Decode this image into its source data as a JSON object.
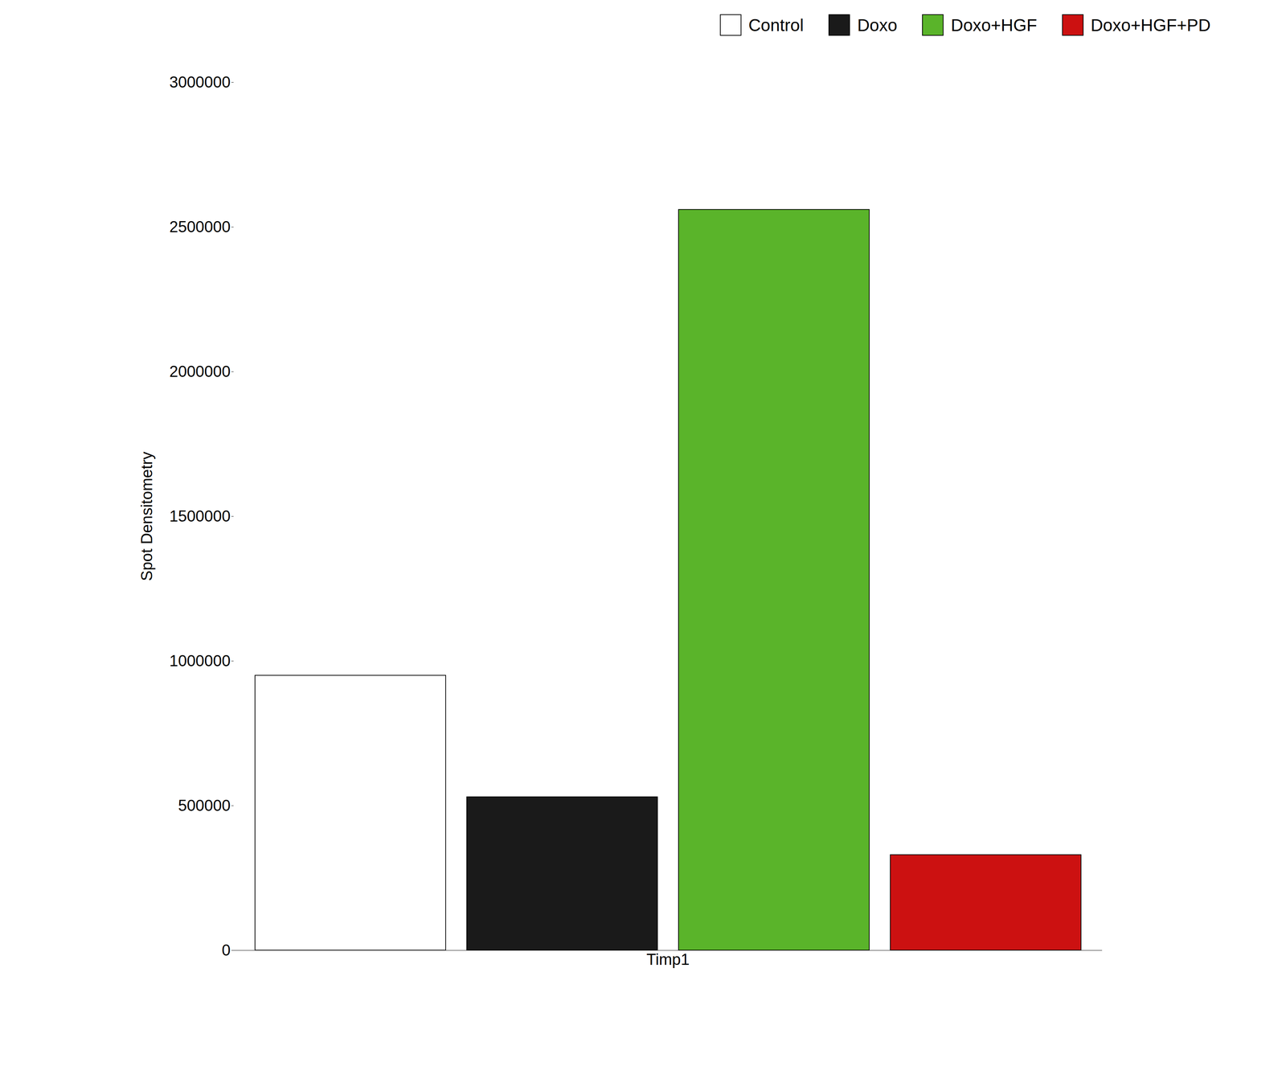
{
  "chart_data": {
    "type": "bar",
    "categories": [
      "Timp1"
    ],
    "series": [
      {
        "name": "Control",
        "color": "#ffffff",
        "values": [
          950000
        ]
      },
      {
        "name": "Doxo",
        "color": "#1a1a1a",
        "values": [
          530000
        ]
      },
      {
        "name": "Doxo+HGF",
        "color": "#5ab42a",
        "values": [
          2560000
        ]
      },
      {
        "name": "Doxo+HGF+PD",
        "color": "#cc1111",
        "values": [
          330000
        ]
      }
    ],
    "ylabel": "Spot Densitometry",
    "ylim": [
      0,
      3000000
    ],
    "yticks": [
      0,
      500000,
      1000000,
      1500000,
      2000000,
      2500000,
      3000000
    ],
    "legend": "upper right",
    "grid": false
  }
}
